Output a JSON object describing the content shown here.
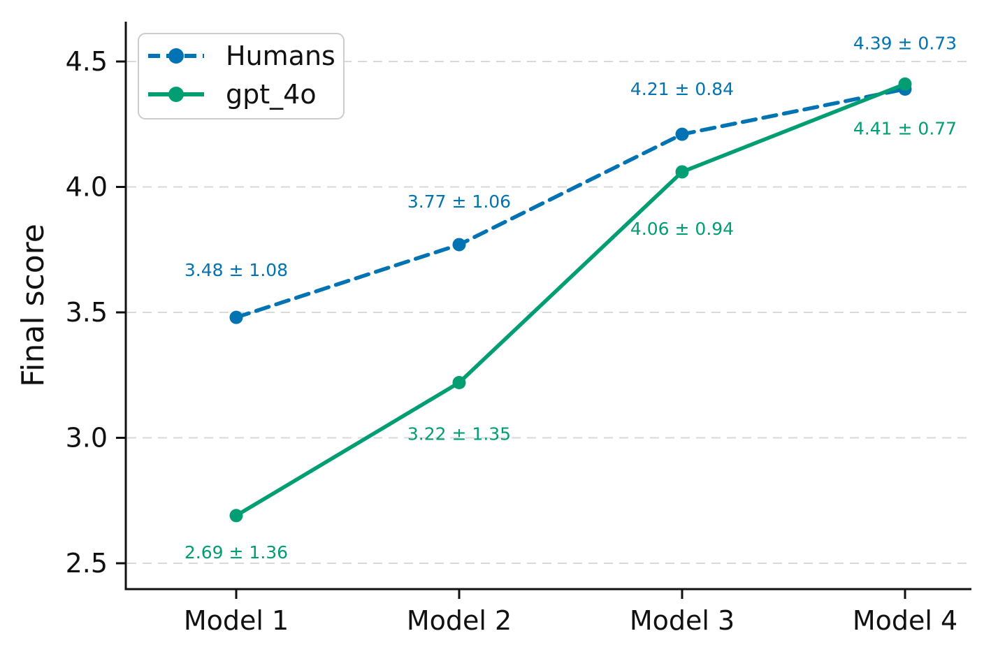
{
  "chart_data": {
    "type": "line",
    "title": "",
    "xlabel": "",
    "ylabel": "Final score",
    "categories": [
      "Model 1",
      "Model 2",
      "Model 3",
      "Model 4"
    ],
    "y_tick_labels": [
      "2.5",
      "3.0",
      "3.5",
      "4.0",
      "4.5"
    ],
    "y_tick_values": [
      2.5,
      3.0,
      3.5,
      4.0,
      4.5
    ],
    "ylim": [
      2.4,
      4.66
    ],
    "grid": "horizontal, dashed, light gray",
    "grid_color": "#d9d9d9",
    "axis_color": "#111111",
    "legend_position": "upper-left",
    "series": [
      {
        "name": "Humans",
        "color": "#0173b2",
        "line_style": "dashed",
        "marker": "circle",
        "values": [
          3.48,
          3.77,
          4.21,
          4.39
        ],
        "errors": [
          1.08,
          1.06,
          0.84,
          0.73
        ],
        "point_labels": [
          "3.48 ± 1.08",
          "3.77 ± 1.06",
          "4.21 ± 0.84",
          "4.39 ± 0.73"
        ],
        "label_placement": "above"
      },
      {
        "name": "gpt_4o",
        "color": "#029e73",
        "line_style": "solid",
        "marker": "circle",
        "values": [
          2.69,
          3.22,
          4.06,
          4.41
        ],
        "errors": [
          1.36,
          1.35,
          0.94,
          0.77
        ],
        "point_labels": [
          "2.69 ± 1.36",
          "3.22 ± 1.35",
          "4.06 ± 0.94",
          "4.41 ± 0.77"
        ],
        "label_placement": "below"
      }
    ]
  }
}
